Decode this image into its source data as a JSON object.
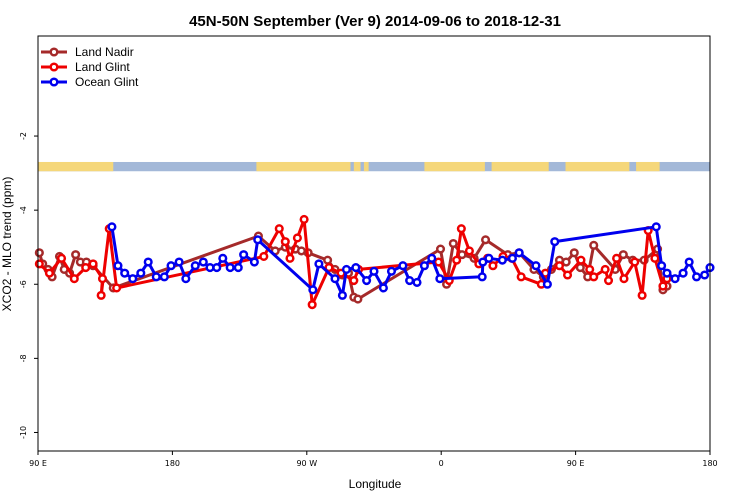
{
  "chart_data": {
    "type": "line",
    "title": "45N-50N September (Ver 9)   2014-09-06 to 2018-12-31",
    "xlabel": "Longitude",
    "ylabel": "XCO2 - MLO trend (ppm)",
    "x_range": [
      0,
      100
    ],
    "ylim": [
      -10.5,
      0.7
    ],
    "x_ticks": [
      {
        "pos": 0,
        "label": "90 E"
      },
      {
        "pos": 20,
        "label": "180"
      },
      {
        "pos": 40,
        "label": "90 W"
      },
      {
        "pos": 60,
        "label": "0"
      },
      {
        "pos": 80,
        "label": "90 E"
      },
      {
        "pos": 100,
        "label": "180"
      }
    ],
    "y_ticks": [
      {
        "value": -2,
        "label": "-2"
      },
      {
        "value": -4,
        "label": "-4"
      },
      {
        "value": -6,
        "label": "-6"
      },
      {
        "value": -8,
        "label": "-8"
      },
      {
        "value": -10,
        "label": "-10"
      }
    ],
    "land_band": {
      "y_top": -2.7,
      "y_bottom": -2.95,
      "ocean_color": "#a3b8d8",
      "land_color": "#f5d77a"
    },
    "legend": {
      "placement": "top-left"
    },
    "series": [
      {
        "name": "Land Nadir",
        "color": "#a52a2a",
        "points": [
          [
            0.2,
            -5.15
          ],
          [
            0.7,
            -5.45
          ],
          [
            1.5,
            -5.6
          ],
          [
            2.1,
            -5.8
          ],
          [
            3.2,
            -5.25
          ],
          [
            3.9,
            -5.6
          ],
          [
            4.7,
            -5.7
          ],
          [
            5.6,
            -5.2
          ],
          [
            6.3,
            -5.4
          ],
          [
            7.2,
            -5.4
          ],
          [
            8.2,
            -5.5
          ],
          [
            11.2,
            -6.1
          ],
          [
            32.8,
            -4.7
          ],
          [
            35.3,
            -5.1
          ],
          [
            36.8,
            -5.0
          ],
          [
            38.3,
            -5.05
          ],
          [
            39.2,
            -5.1
          ],
          [
            40.2,
            -5.15
          ],
          [
            43.1,
            -5.35
          ],
          [
            44.2,
            -5.6
          ],
          [
            45.3,
            -5.75
          ],
          [
            46.2,
            -5.7
          ],
          [
            47.0,
            -6.35
          ],
          [
            47.6,
            -6.4
          ],
          [
            59.9,
            -5.05
          ],
          [
            60.8,
            -6.0
          ],
          [
            61.8,
            -4.9
          ],
          [
            63.1,
            -5.2
          ],
          [
            64.9,
            -5.3
          ],
          [
            66.6,
            -4.8
          ],
          [
            69.9,
            -5.2
          ],
          [
            71.6,
            -5.15
          ],
          [
            73.8,
            -5.6
          ],
          [
            75.2,
            -5.8
          ],
          [
            76.4,
            -5.6
          ],
          [
            77.6,
            -5.35
          ],
          [
            78.6,
            -5.4
          ],
          [
            79.8,
            -5.15
          ],
          [
            80.7,
            -5.55
          ],
          [
            81.8,
            -5.8
          ],
          [
            82.7,
            -4.95
          ],
          [
            85.9,
            -5.6
          ],
          [
            87.1,
            -5.2
          ],
          [
            88.5,
            -5.35
          ],
          [
            90.2,
            -5.35
          ],
          [
            92.2,
            -5.05
          ],
          [
            93.0,
            -6.15
          ],
          [
            93.6,
            -6.05
          ]
        ]
      },
      {
        "name": "Land Glint",
        "color": "#ee0000",
        "points": [
          [
            0.2,
            -5.45
          ],
          [
            1.7,
            -5.7
          ],
          [
            3.5,
            -5.3
          ],
          [
            5.4,
            -5.85
          ],
          [
            7.1,
            -5.55
          ],
          [
            8.2,
            -5.45
          ],
          [
            9.6,
            -5.85
          ],
          [
            9.4,
            -6.3
          ],
          [
            10.6,
            -4.5
          ],
          [
            11.7,
            -6.1
          ],
          [
            33.6,
            -5.25
          ],
          [
            35.9,
            -4.5
          ],
          [
            36.8,
            -4.85
          ],
          [
            37.5,
            -5.3
          ],
          [
            38.6,
            -4.75
          ],
          [
            39.6,
            -4.25
          ],
          [
            40.8,
            -6.55
          ],
          [
            43.3,
            -5.55
          ],
          [
            45.1,
            -5.7
          ],
          [
            47.0,
            -5.9
          ],
          [
            47.7,
            -5.6
          ],
          [
            59.6,
            -5.4
          ],
          [
            61.2,
            -5.9
          ],
          [
            62.3,
            -5.35
          ],
          [
            63.0,
            -4.5
          ],
          [
            64.2,
            -5.1
          ],
          [
            65.6,
            -5.45
          ],
          [
            66.9,
            -5.3
          ],
          [
            67.7,
            -5.5
          ],
          [
            69.2,
            -5.25
          ],
          [
            70.5,
            -5.3
          ],
          [
            71.9,
            -5.8
          ],
          [
            74.9,
            -6.0
          ],
          [
            75.5,
            -5.7
          ],
          [
            77.6,
            -5.5
          ],
          [
            78.8,
            -5.75
          ],
          [
            80.8,
            -5.35
          ],
          [
            82.1,
            -5.6
          ],
          [
            82.7,
            -5.8
          ],
          [
            84.4,
            -5.6
          ],
          [
            84.9,
            -5.9
          ],
          [
            86.1,
            -5.3
          ],
          [
            87.2,
            -5.85
          ],
          [
            88.8,
            -5.4
          ],
          [
            89.9,
            -6.3
          ],
          [
            90.8,
            -4.55
          ],
          [
            91.8,
            -5.3
          ],
          [
            93.0,
            -6.05
          ],
          [
            93.6,
            -5.85
          ]
        ]
      },
      {
        "name": "Ocean Glint",
        "color": "#0000ee",
        "points": [
          [
            11.0,
            -4.45
          ],
          [
            11.9,
            -5.5
          ],
          [
            12.9,
            -5.7
          ],
          [
            14.1,
            -5.85
          ],
          [
            15.3,
            -5.7
          ],
          [
            16.4,
            -5.4
          ],
          [
            17.6,
            -5.8
          ],
          [
            18.8,
            -5.8
          ],
          [
            19.8,
            -5.5
          ],
          [
            21.0,
            -5.4
          ],
          [
            22.0,
            -5.85
          ],
          [
            23.4,
            -5.5
          ],
          [
            24.6,
            -5.4
          ],
          [
            25.6,
            -5.55
          ],
          [
            26.6,
            -5.55
          ],
          [
            27.5,
            -5.3
          ],
          [
            28.6,
            -5.55
          ],
          [
            29.8,
            -5.55
          ],
          [
            30.6,
            -5.2
          ],
          [
            32.2,
            -5.4
          ],
          [
            32.7,
            -4.8
          ],
          [
            40.9,
            -6.15
          ],
          [
            41.8,
            -5.45
          ],
          [
            44.2,
            -5.85
          ],
          [
            45.3,
            -6.3
          ],
          [
            45.9,
            -5.6
          ],
          [
            47.3,
            -5.55
          ],
          [
            48.9,
            -5.9
          ],
          [
            50.0,
            -5.65
          ],
          [
            51.4,
            -6.1
          ],
          [
            52.6,
            -5.65
          ],
          [
            54.3,
            -5.5
          ],
          [
            55.3,
            -5.9
          ],
          [
            56.4,
            -5.95
          ],
          [
            57.5,
            -5.5
          ],
          [
            58.6,
            -5.3
          ],
          [
            59.8,
            -5.85
          ],
          [
            66.1,
            -5.8
          ],
          [
            66.2,
            -5.4
          ],
          [
            67.1,
            -5.3
          ],
          [
            69.1,
            -5.35
          ],
          [
            70.6,
            -5.3
          ],
          [
            71.6,
            -5.15
          ],
          [
            74.1,
            -5.5
          ],
          [
            75.8,
            -6.0
          ],
          [
            76.9,
            -4.85
          ],
          [
            92.0,
            -4.45
          ],
          [
            92.8,
            -5.5
          ],
          [
            93.6,
            -5.7
          ],
          [
            94.8,
            -5.85
          ],
          [
            96.0,
            -5.7
          ],
          [
            96.9,
            -5.4
          ],
          [
            98.0,
            -5.8
          ],
          [
            99.2,
            -5.75
          ],
          [
            100,
            -5.55
          ]
        ]
      }
    ]
  }
}
